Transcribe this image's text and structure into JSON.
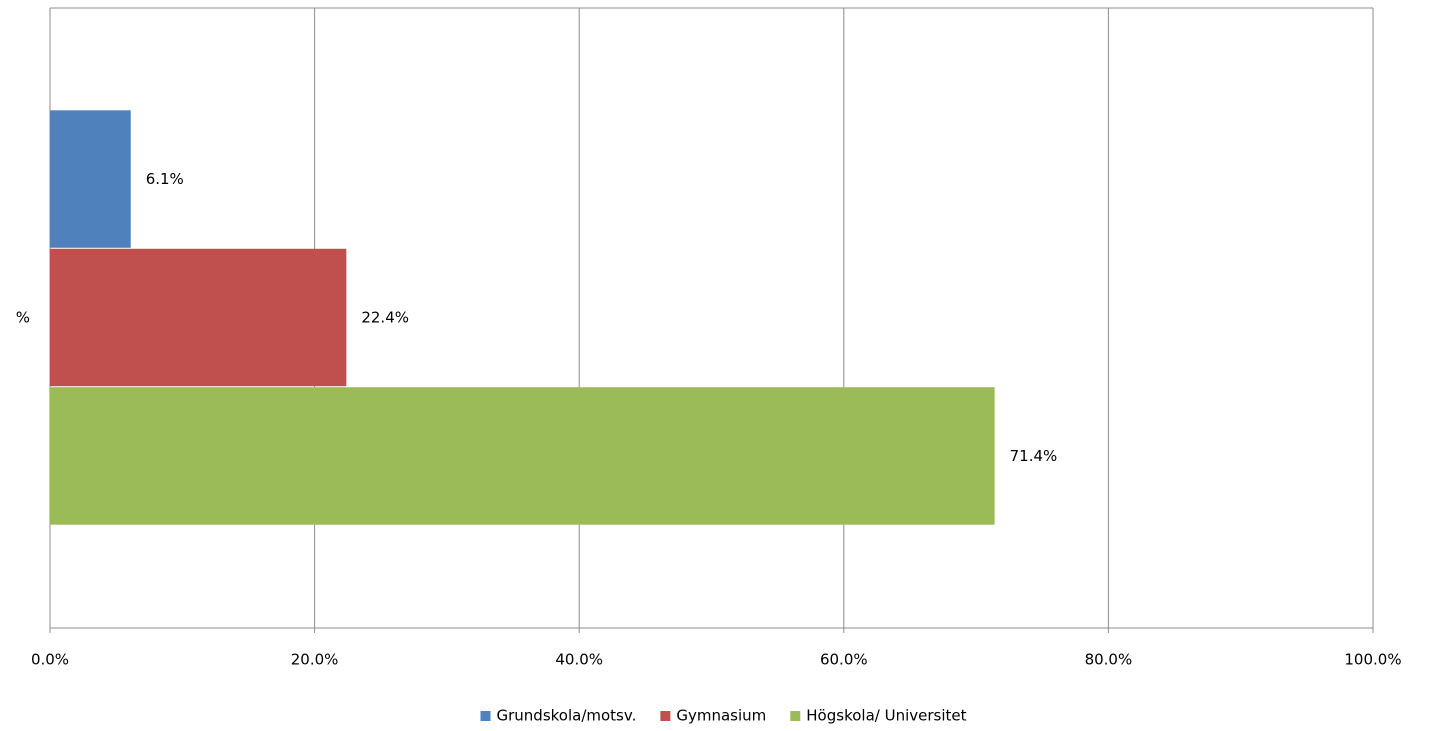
{
  "chart_data": {
    "type": "hbar",
    "categories": [
      "%"
    ],
    "series": [
      {
        "name": "Grundskola/motsv.",
        "color": "#4f81bd",
        "values": [
          6.1
        ],
        "value_labels": [
          "6.1%"
        ]
      },
      {
        "name": "Gymnasium",
        "color": "#c0504d",
        "values": [
          22.4
        ],
        "value_labels": [
          "22.4%"
        ]
      },
      {
        "name": "Högskola/ Universitet",
        "color": "#9bbb59",
        "values": [
          71.4
        ],
        "value_labels": [
          "71.4%"
        ]
      }
    ],
    "xlim": [
      0,
      100
    ],
    "xticks": [
      {
        "value": 0,
        "label": "0.0%"
      },
      {
        "value": 20,
        "label": "20.0%"
      },
      {
        "value": 40,
        "label": "40.0%"
      },
      {
        "value": 60,
        "label": "60.0%"
      },
      {
        "value": 80,
        "label": "80.0%"
      },
      {
        "value": 100,
        "label": "100.0%"
      }
    ],
    "grid": true,
    "legend": "bottom"
  }
}
